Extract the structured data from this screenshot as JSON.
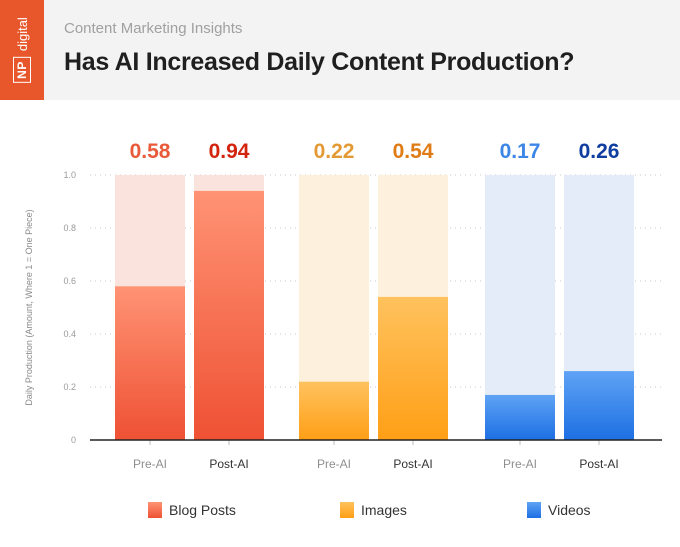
{
  "header": {
    "logo": "NP digital",
    "subtitle": "Content Marketing Insights",
    "title": "Has AI Increased Daily Content Production?"
  },
  "chart_data": {
    "type": "bar",
    "title": "Has AI Increased Daily Content Production?",
    "ylabel": "Daily Production (Amount, Where 1 = One Piece)",
    "ylim": [
      0,
      1.0
    ],
    "yticks": [
      "0",
      "0.2",
      "0.4",
      "0.6",
      "0.8",
      "1.0"
    ],
    "grid": true,
    "legend_position": "bottom",
    "groups": [
      {
        "name": "Blog Posts",
        "colors": {
          "light": "#fbe3dd",
          "bar_top": "#ff9374",
          "bar_bottom": "#ef5134",
          "label": "#e85a3a",
          "legend": "#ef5a3a"
        },
        "bars": [
          {
            "category": "Pre-AI",
            "value": 0.58,
            "label": "0.58",
            "label_color": "#e85a3a"
          },
          {
            "category": "Post-AI",
            "value": 0.94,
            "label": "0.94",
            "label_color": "#d3240d"
          }
        ]
      },
      {
        "name": "Images",
        "colors": {
          "light": "#fdf0dd",
          "bar_top": "#ffc25e",
          "bar_bottom": "#ff9f16",
          "label": "#e0922a",
          "legend": "#ffac33"
        },
        "bars": [
          {
            "category": "Pre-AI",
            "value": 0.22,
            "label": "0.22",
            "label_color": "#e39a34"
          },
          {
            "category": "Post-AI",
            "value": 0.54,
            "label": "0.54",
            "label_color": "#e07c16"
          }
        ]
      },
      {
        "name": "Videos",
        "colors": {
          "light": "#e3ecf8",
          "bar_top": "#5fa3f5",
          "bar_bottom": "#1d6fe3",
          "label": "#2f7bde",
          "legend": "#2e7ee6"
        },
        "bars": [
          {
            "category": "Pre-AI",
            "value": 0.17,
            "label": "0.17",
            "label_color": "#3b86e6"
          },
          {
            "category": "Post-AI",
            "value": 0.26,
            "label": "0.26",
            "label_color": "#0f3da0"
          }
        ]
      }
    ]
  }
}
